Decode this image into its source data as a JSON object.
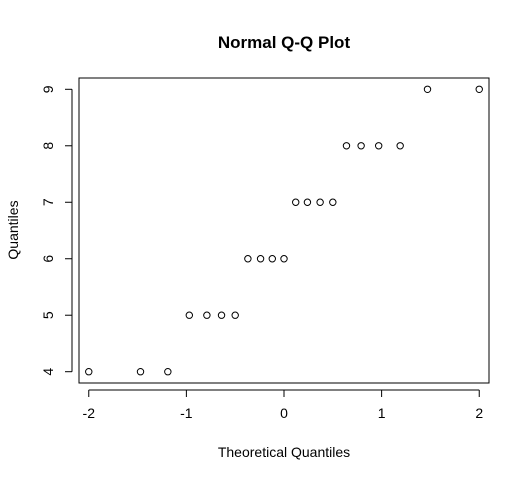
{
  "chart_data": {
    "type": "scatter",
    "title": "Normal Q-Q Plot",
    "xlabel": "Theoretical Quantiles",
    "ylabel": "Quantiles",
    "xlim": [
      -2.1,
      2.1
    ],
    "ylim": [
      3.8,
      9.2
    ],
    "xticks": [
      -2,
      -1,
      0,
      1,
      2
    ],
    "yticks": [
      4,
      5,
      6,
      7,
      8,
      9
    ],
    "xtick_labels": [
      "-2",
      "-1",
      "0",
      "1",
      "2"
    ],
    "ytick_labels": [
      "4",
      "5",
      "6",
      "7",
      "8",
      "9"
    ],
    "grid": false,
    "marker": "open-circle",
    "color": "#000000",
    "points": [
      {
        "x": -2.0,
        "y": 4
      },
      {
        "x": -1.47,
        "y": 4
      },
      {
        "x": -1.19,
        "y": 4
      },
      {
        "x": -0.97,
        "y": 5
      },
      {
        "x": -0.79,
        "y": 5
      },
      {
        "x": -0.64,
        "y": 5
      },
      {
        "x": -0.5,
        "y": 5
      },
      {
        "x": -0.37,
        "y": 6
      },
      {
        "x": -0.24,
        "y": 6
      },
      {
        "x": -0.12,
        "y": 6
      },
      {
        "x": 0.0,
        "y": 6
      },
      {
        "x": 0.12,
        "y": 7
      },
      {
        "x": 0.24,
        "y": 7
      },
      {
        "x": 0.37,
        "y": 7
      },
      {
        "x": 0.5,
        "y": 7
      },
      {
        "x": 0.64,
        "y": 8
      },
      {
        "x": 0.79,
        "y": 8
      },
      {
        "x": 0.97,
        "y": 8
      },
      {
        "x": 1.19,
        "y": 8
      },
      {
        "x": 1.47,
        "y": 9
      },
      {
        "x": 2.0,
        "y": 9
      }
    ]
  }
}
